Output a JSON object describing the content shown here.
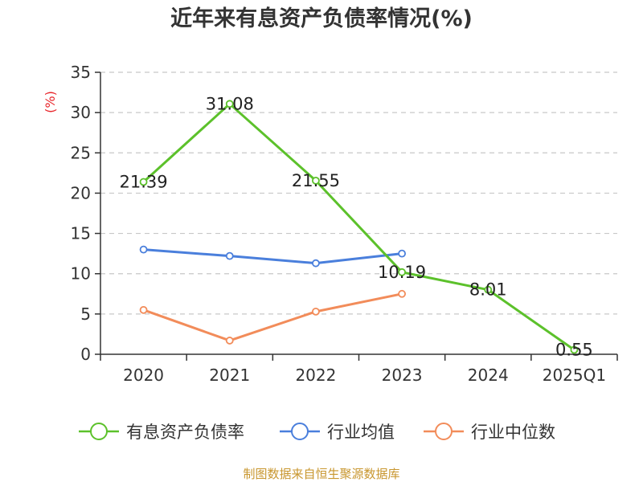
{
  "chart_data": {
    "type": "line",
    "title": "近年来有息资产负债率情况(%)",
    "ylabel": "(%)",
    "xlabel": "",
    "categories": [
      "2020",
      "2021",
      "2022",
      "2023",
      "2024",
      "2025Q1"
    ],
    "ylim": [
      0,
      35
    ],
    "yticks": [
      0,
      5,
      10,
      15,
      20,
      25,
      30,
      35
    ],
    "grid": true,
    "legend_position": "bottom",
    "series": [
      {
        "name": "有息资产负债率",
        "color": "#5cc12b",
        "values": [
          21.39,
          31.08,
          21.55,
          10.19,
          8.01,
          0.55
        ],
        "labels": [
          "21.39",
          "31.08",
          "21.55",
          "10.19",
          "8.01",
          "0.55"
        ]
      },
      {
        "name": "行业均值",
        "color": "#4a7fdc",
        "values": [
          13.0,
          12.2,
          11.3,
          12.5,
          null,
          null
        ]
      },
      {
        "name": "行业中位数",
        "color": "#f28c5a",
        "values": [
          5.5,
          1.7,
          5.3,
          7.5,
          null,
          null
        ]
      }
    ]
  },
  "source": "制图数据来自恒生聚源数据库"
}
